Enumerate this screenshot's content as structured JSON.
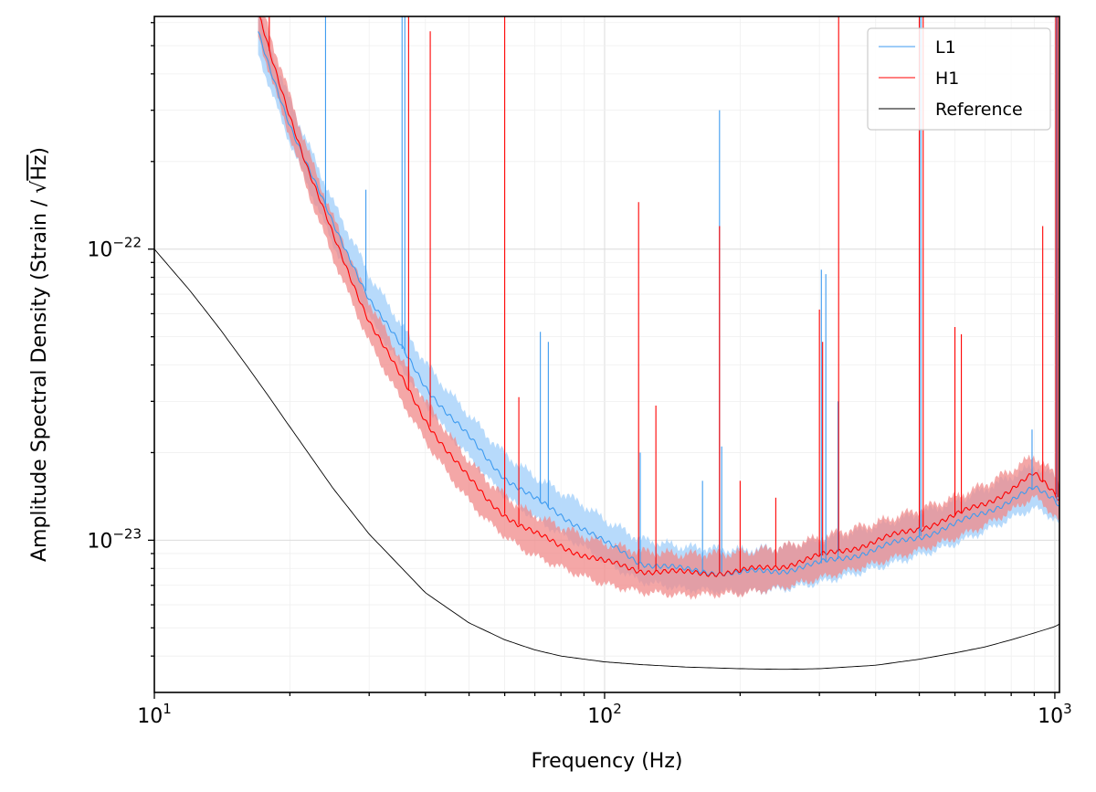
{
  "chart_data": {
    "type": "line",
    "title": "",
    "xlabel": "Frequency (Hz)",
    "ylabel_prefix": "Amplitude Spectral Density (Strain / ",
    "ylabel_radicand": "Hz",
    "ylabel_suffix": ")",
    "xscale": "log",
    "yscale": "log",
    "xlim": [
      10,
      1024
    ],
    "ylim": [
      3e-24,
      6.3e-22
    ],
    "grid": true,
    "legend_placement": "upper-right",
    "x_tick_labels": [
      {
        "base": "10",
        "exp": "1",
        "value": 10
      },
      {
        "base": "10",
        "exp": "2",
        "value": 100
      },
      {
        "base": "10",
        "exp": "3",
        "value": 1000
      }
    ],
    "y_tick_labels": [
      {
        "base": "10",
        "exp": "−22",
        "value": 1e-22
      },
      {
        "base": "10",
        "exp": "−23",
        "value": 1e-23
      }
    ],
    "colors": {
      "L1": "#3d9bf0",
      "L1_band": "#b3d8fb",
      "H1": "#ff0000",
      "H1_band": "#f08a8a",
      "Reference": "#000000"
    },
    "series": [
      {
        "name": "L1",
        "x": [
          17,
          18,
          20,
          22,
          25,
          28,
          30,
          35,
          40,
          45,
          50,
          55,
          60,
          65,
          70,
          80,
          90,
          100,
          120,
          150,
          200,
          250,
          300,
          400,
          500,
          600,
          700,
          800,
          900,
          1000,
          1024
        ],
        "values": [
          5.5e-22,
          4.2e-22,
          2.7e-22,
          1.9e-22,
          1.2e-22,
          8.5e-23,
          6.8e-23,
          4.7e-23,
          3.4e-23,
          2.7e-23,
          2.25e-23,
          1.9e-23,
          1.65e-23,
          1.5e-23,
          1.38e-23,
          1.22e-23,
          1.1e-23,
          9.8e-24,
          8.4e-24,
          7.9e-24,
          7.7e-24,
          7.9e-24,
          8.3e-24,
          9.3e-24,
          1.03e-23,
          1.13e-23,
          1.25e-23,
          1.38e-23,
          1.5e-23,
          1.38e-23,
          1.32e-23
        ],
        "band_low_factor": 0.86,
        "band_high_factor": 1.2
      },
      {
        "name": "H1",
        "x": [
          17,
          18,
          20,
          22,
          25,
          28,
          30,
          35,
          40,
          45,
          50,
          55,
          60,
          65,
          70,
          80,
          90,
          100,
          120,
          150,
          200,
          250,
          300,
          400,
          500,
          600,
          700,
          800,
          900,
          1000,
          1024
        ],
        "values": [
          6.5e-22,
          4.8e-22,
          2.9e-22,
          1.85e-22,
          1.1e-22,
          7.3e-23,
          5.7e-23,
          3.7e-23,
          2.6e-23,
          2e-23,
          1.62e-23,
          1.38e-23,
          1.23e-23,
          1.12e-23,
          1.05e-23,
          9.6e-24,
          8.9e-24,
          8.4e-24,
          7.9e-24,
          7.7e-24,
          7.8e-24,
          8.2e-24,
          8.8e-24,
          9.9e-24,
          1.1e-23,
          1.21e-23,
          1.34e-23,
          1.5e-23,
          1.68e-23,
          1.45e-23,
          1.38e-23
        ],
        "band_low_factor": 0.84,
        "band_high_factor": 1.16
      },
      {
        "name": "Reference",
        "x": [
          10,
          12,
          14,
          16,
          18,
          20,
          25,
          30,
          40,
          50,
          60,
          70,
          80,
          100,
          120,
          150,
          200,
          250,
          300,
          400,
          500,
          600,
          700,
          800,
          900,
          1000,
          1024
        ],
        "values": [
          1e-22,
          7.2e-23,
          5.3e-23,
          4e-23,
          3.1e-23,
          2.45e-23,
          1.5e-23,
          1.05e-23,
          6.6e-24,
          5.2e-24,
          4.55e-24,
          4.2e-24,
          4e-24,
          3.82e-24,
          3.74e-24,
          3.67e-24,
          3.62e-24,
          3.6e-24,
          3.62e-24,
          3.72e-24,
          3.9e-24,
          4.1e-24,
          4.3e-24,
          4.55e-24,
          4.8e-24,
          5.05e-24,
          5.15e-24
        ]
      }
    ],
    "lines_L1": [
      {
        "f": 24,
        "top": 6.3e-22
      },
      {
        "f": 35.5,
        "top": 6.3e-22
      },
      {
        "f": 36,
        "top": 6.3e-22
      },
      {
        "f": 29.5,
        "top": 1.6e-22
      },
      {
        "f": 72,
        "top": 5.2e-23
      },
      {
        "f": 75,
        "top": 4.8e-23
      },
      {
        "f": 120,
        "top": 2e-23
      },
      {
        "f": 165,
        "top": 1.6e-23
      },
      {
        "f": 180,
        "top": 3e-22
      },
      {
        "f": 182,
        "top": 2.1e-23
      },
      {
        "f": 303,
        "top": 8.5e-23
      },
      {
        "f": 310,
        "top": 8.2e-23
      },
      {
        "f": 330,
        "top": 3e-23
      },
      {
        "f": 500,
        "top": 6.3e-22
      },
      {
        "f": 504,
        "top": 6.3e-22
      },
      {
        "f": 890,
        "top": 2.4e-23
      },
      {
        "f": 1010,
        "top": 6.3e-22
      }
    ],
    "lines_H1": [
      {
        "f": 18,
        "top": 6.3e-22
      },
      {
        "f": 36.7,
        "top": 6.3e-22
      },
      {
        "f": 41,
        "top": 5.6e-22
      },
      {
        "f": 60,
        "top": 6.3e-22
      },
      {
        "f": 64.5,
        "top": 3.1e-23
      },
      {
        "f": 119,
        "top": 1.45e-22
      },
      {
        "f": 130,
        "top": 2.9e-23
      },
      {
        "f": 180,
        "top": 1.2e-22
      },
      {
        "f": 200,
        "top": 1.6e-23
      },
      {
        "f": 240,
        "top": 1.4e-23
      },
      {
        "f": 300,
        "top": 6.2e-23
      },
      {
        "f": 305,
        "top": 4.8e-23
      },
      {
        "f": 331,
        "top": 6.3e-22
      },
      {
        "f": 500,
        "top": 6.3e-22
      },
      {
        "f": 510,
        "top": 6.3e-22
      },
      {
        "f": 600,
        "top": 5.4e-23
      },
      {
        "f": 620,
        "top": 5.1e-23
      },
      {
        "f": 940,
        "top": 1.2e-22
      },
      {
        "f": 1005,
        "top": 6.3e-22
      },
      {
        "f": 1015,
        "top": 6.3e-22
      }
    ],
    "legend": [
      {
        "label": "L1",
        "series": "L1"
      },
      {
        "label": "H1",
        "series": "H1"
      },
      {
        "label": "Reference",
        "series": "Reference"
      }
    ]
  }
}
